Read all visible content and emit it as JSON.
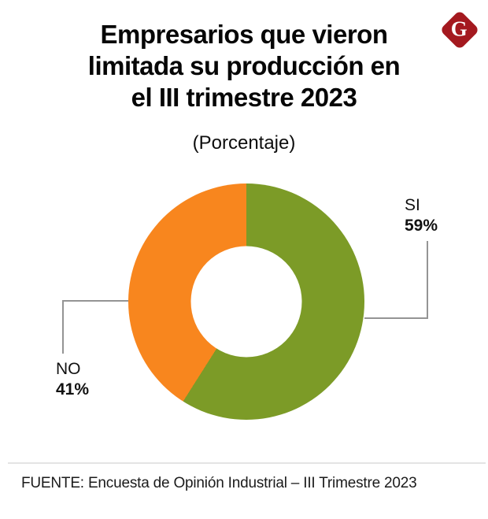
{
  "page": {
    "background": "#ffffff"
  },
  "header": {
    "title_lines": [
      "Empresarios que vieron",
      "limitada su producción en",
      "el III trimestre 2023"
    ],
    "subtitle": "(Porcentaje)",
    "logo": {
      "letter": "G",
      "bg_color": "#A4191F",
      "letter_color": "#ffffff"
    }
  },
  "chart_data": {
    "type": "pie",
    "subtype": "donut",
    "title": "Empresarios que vieron limitada su producción en el III trimestre 2023",
    "subtitle": "(Porcentaje)",
    "unit": "%",
    "labels": [
      "SI",
      "NO"
    ],
    "values": [
      59,
      41
    ],
    "display_values": [
      "59%",
      "41%"
    ],
    "colors": [
      "#7C9B27",
      "#F8861E"
    ],
    "start_angle_deg": 0,
    "direction": "clockwise",
    "donut_hole_ratio": 0.47,
    "callout_line_color": "#949494",
    "legend_position": "callout-labels"
  },
  "footer": {
    "source": "FUENTE: Encuesta de Opinión Industrial – III Trimestre 2023"
  }
}
